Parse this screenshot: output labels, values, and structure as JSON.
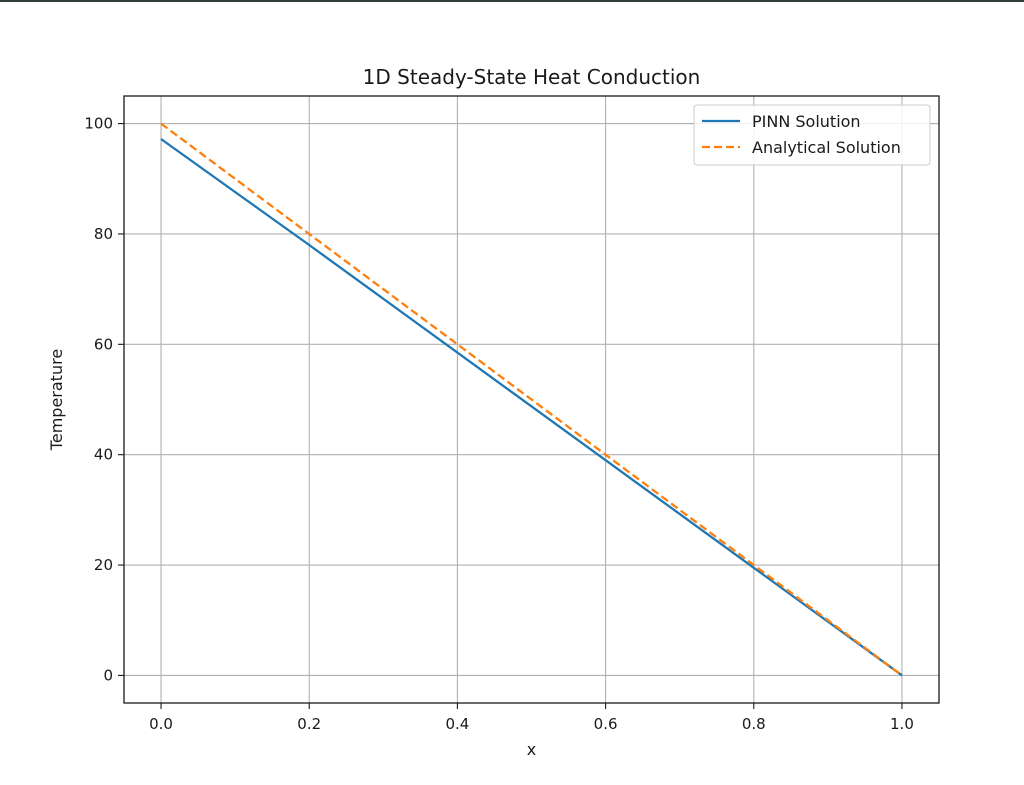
{
  "chart_data": {
    "type": "line",
    "title": "1D Steady-State Heat Conduction",
    "xlabel": "x",
    "ylabel": "Temperature",
    "xlim": [
      -0.05,
      1.05
    ],
    "ylim": [
      -5,
      105
    ],
    "xticks": [
      0.0,
      0.2,
      0.4,
      0.6,
      0.8,
      1.0
    ],
    "xtick_labels": [
      "0.0",
      "0.2",
      "0.4",
      "0.6",
      "0.8",
      "1.0"
    ],
    "yticks": [
      0,
      20,
      40,
      60,
      80,
      100
    ],
    "ytick_labels": [
      "0",
      "20",
      "40",
      "60",
      "80",
      "100"
    ],
    "grid": true,
    "legend_position": "top-right",
    "series": [
      {
        "name": "PINN Solution",
        "color": "#1f77b4",
        "style": "solid",
        "x": [
          0.0,
          0.2,
          0.4,
          0.6,
          0.8,
          1.0
        ],
        "y": [
          97.2,
          78.0,
          58.5,
          39.0,
          19.5,
          0.0
        ]
      },
      {
        "name": "Analytical Solution",
        "color": "#ff7f0e",
        "style": "dashed",
        "x": [
          0.0,
          0.2,
          0.4,
          0.6,
          0.8,
          1.0
        ],
        "y": [
          100.0,
          80.0,
          60.0,
          40.0,
          20.0,
          0.0
        ]
      }
    ]
  }
}
